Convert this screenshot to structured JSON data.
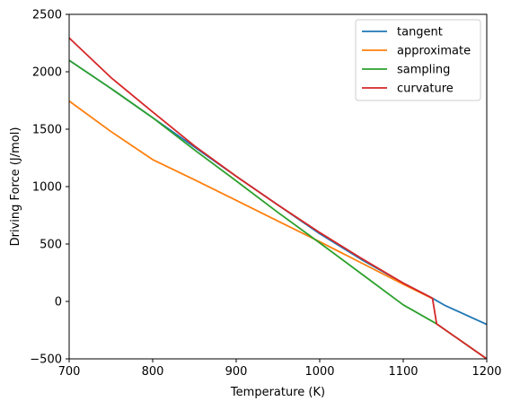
{
  "chart_data": {
    "type": "line",
    "title": "",
    "xlabel": "Temperature (K)",
    "ylabel": "Driving Force (J/mol)",
    "xlim": [
      700,
      1200
    ],
    "ylim": [
      -500,
      2500
    ],
    "xticks": [
      700,
      800,
      900,
      1000,
      1100,
      1200
    ],
    "yticks": [
      -500,
      0,
      500,
      1000,
      1500,
      2000,
      2500
    ],
    "grid": false,
    "legend_position": "top-right",
    "series": [
      {
        "name": "tangent",
        "color": "#1f77b4",
        "x": [
          700,
          750,
          800,
          850,
          900,
          950,
          1000,
          1050,
          1100,
          1135,
          1150,
          1200
        ],
        "y": [
          2100,
          1855,
          1600,
          1345,
          1090,
          840,
          590,
          365,
          160,
          28,
          -35,
          -200
        ]
      },
      {
        "name": "approximate",
        "color": "#ff7f0e",
        "x": [
          700,
          750,
          800,
          850,
          900,
          950,
          1000,
          1050,
          1100,
          1135
        ],
        "y": [
          1745,
          1480,
          1235,
          1060,
          880,
          700,
          520,
          335,
          150,
          25
        ]
      },
      {
        "name": "sampling",
        "color": "#2ca02c",
        "x": [
          700,
          750,
          800,
          850,
          900,
          950,
          1000,
          1050,
          1100,
          1140,
          1200
        ],
        "y": [
          2100,
          1855,
          1600,
          1320,
          1050,
          775,
          510,
          240,
          -30,
          -195,
          -500
        ]
      },
      {
        "name": "curvature",
        "color": "#d62728",
        "x": [
          700,
          750,
          800,
          850,
          900,
          950,
          1000,
          1050,
          1100,
          1135,
          1140,
          1200
        ],
        "y": [
          2295,
          1950,
          1650,
          1355,
          1090,
          840,
          600,
          375,
          160,
          28,
          -195,
          -500
        ]
      }
    ]
  }
}
